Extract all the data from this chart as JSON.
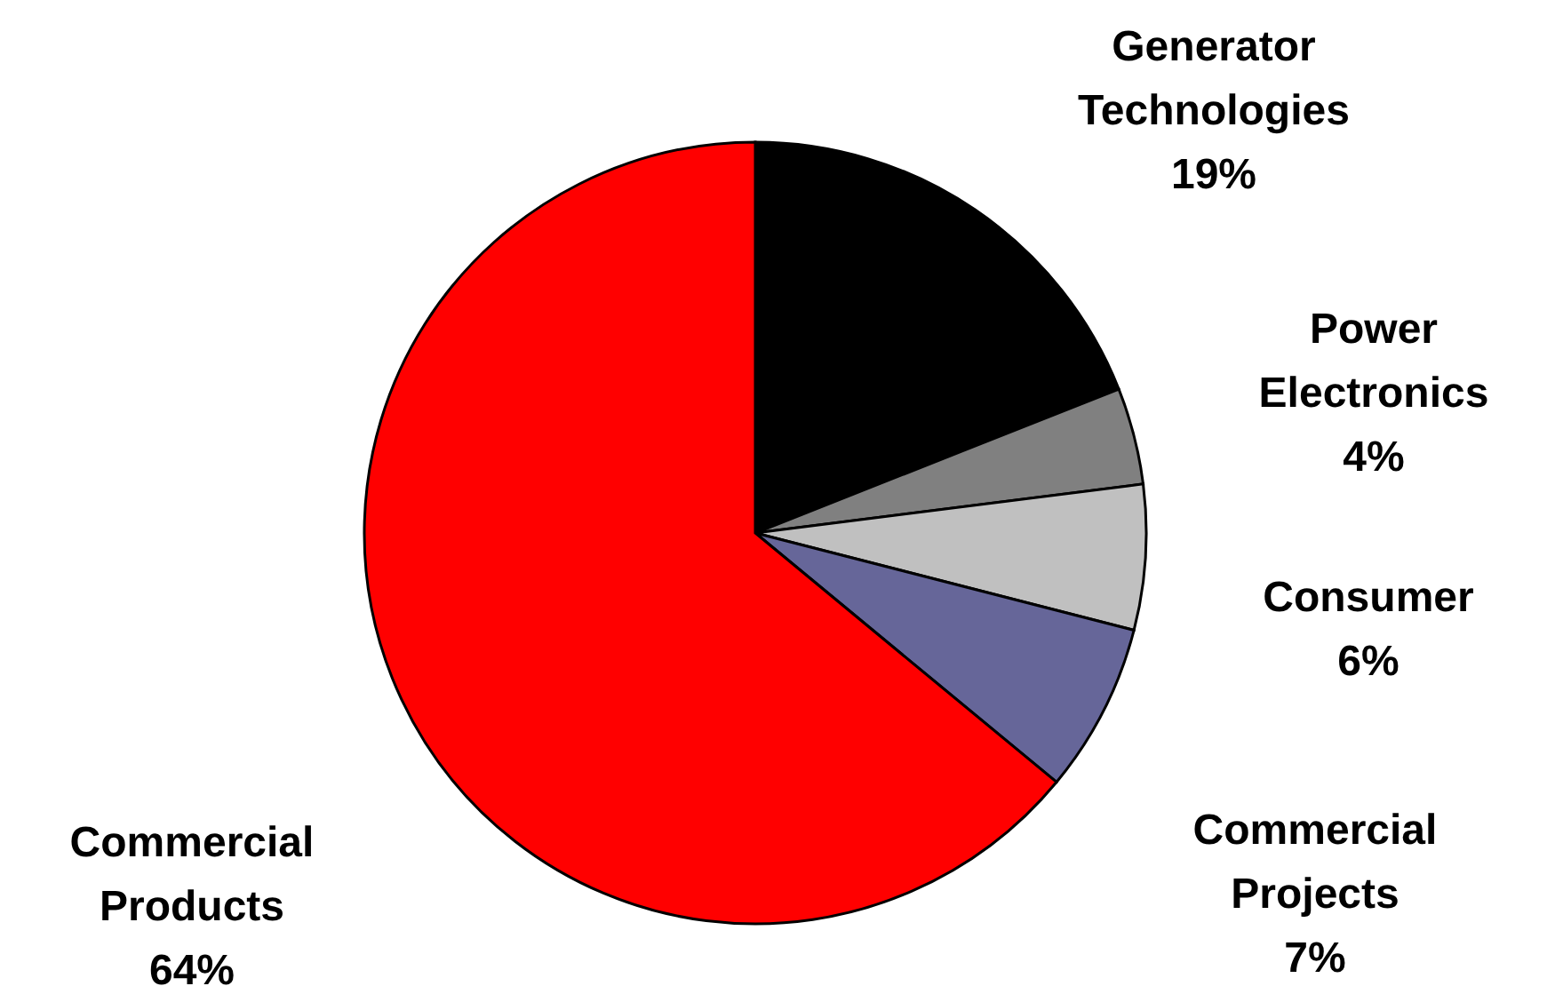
{
  "chart_data": {
    "type": "pie",
    "categories": [
      "Generator Technologies",
      "Power Electronics",
      "Consumer",
      "Commercial Projects",
      "Commercial Products"
    ],
    "values": [
      19,
      4,
      6,
      7,
      64
    ],
    "value_labels": [
      "19%",
      "4%",
      "6%",
      "7%",
      "64%"
    ],
    "colors": [
      "#000000",
      "#808080",
      "#c0c0c0",
      "#666699",
      "#ff0000"
    ],
    "legend": false
  }
}
